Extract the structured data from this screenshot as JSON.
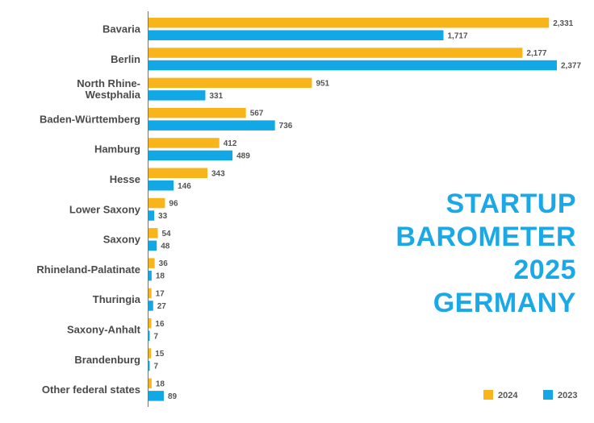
{
  "chart_data": {
    "type": "bar",
    "orientation": "horizontal",
    "categories": [
      "Bavaria",
      "Berlin",
      "North Rhine-\nWestphalia",
      "Baden-Württemberg",
      "Hamburg",
      "Hesse",
      "Lower Saxony",
      "Saxony",
      "Rhineland-Palatinate",
      "Thuringia",
      "Saxony-Anhalt",
      "Brandenburg",
      "Other federal states"
    ],
    "series": [
      {
        "name": "2024",
        "color": "#f7b51b",
        "values": [
          2331,
          2177,
          951,
          567,
          412,
          343,
          96,
          54,
          36,
          17,
          16,
          15,
          18
        ],
        "labels": [
          "2,331",
          "2,177",
          "951",
          "567",
          "412",
          "343",
          "96",
          "54",
          "36",
          "17",
          "16",
          "15",
          "18"
        ]
      },
      {
        "name": "2023",
        "color": "#12a7e5",
        "values": [
          1717,
          2377,
          331,
          736,
          489,
          146,
          33,
          48,
          18,
          27,
          7,
          7,
          89
        ],
        "labels": [
          "1,717",
          "2,377",
          "331",
          "736",
          "489",
          "146",
          "33",
          "48",
          "18",
          "27",
          "7",
          "7",
          "89"
        ]
      }
    ],
    "xlim": [
      0,
      2377
    ],
    "title_lines": [
      "STARTUP",
      "BAROMETER",
      "2025",
      "GERMANY"
    ],
    "legend": {
      "placement": "bottom-right"
    },
    "grid": false
  }
}
